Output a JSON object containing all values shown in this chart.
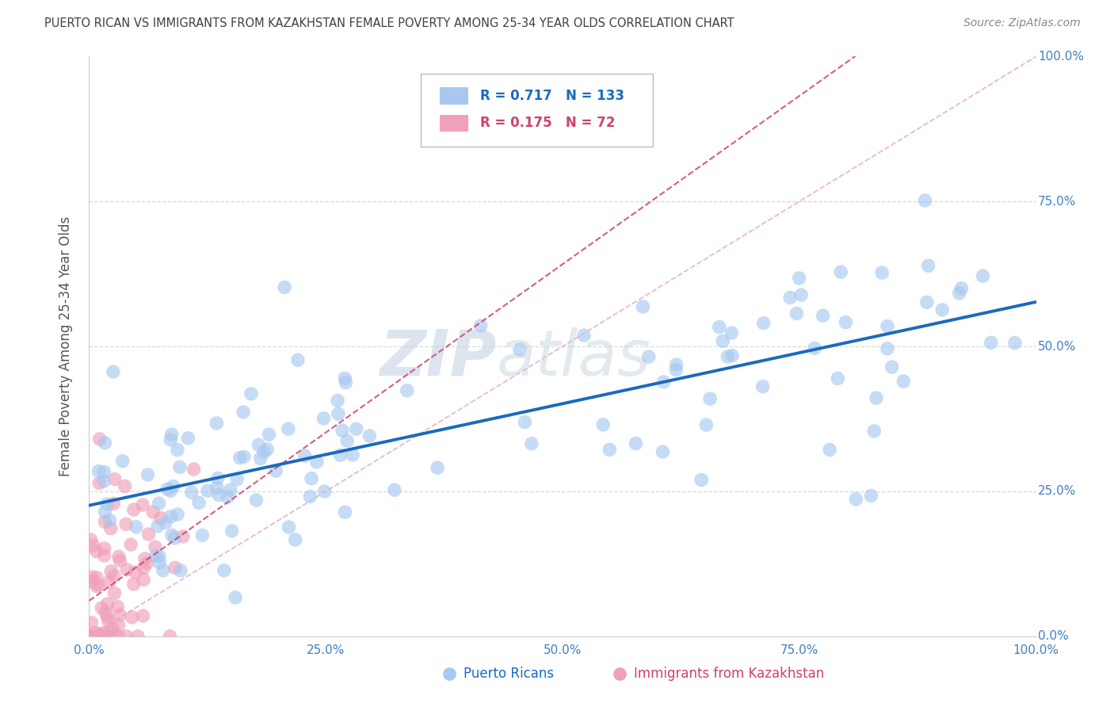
{
  "title": "PUERTO RICAN VS IMMIGRANTS FROM KAZAKHSTAN FEMALE POVERTY AMONG 25-34 YEAR OLDS CORRELATION CHART",
  "source": "Source: ZipAtlas.com",
  "ylabel": "Female Poverty Among 25-34 Year Olds",
  "watermark_zip": "ZIP",
  "watermark_atlas": "atlas",
  "blue_R": 0.717,
  "blue_N": 133,
  "pink_R": 0.175,
  "pink_N": 72,
  "blue_color": "#a8c8f0",
  "blue_line_color": "#1a6abf",
  "pink_color": "#f0a0b8",
  "pink_line_color": "#d04070",
  "ref_line_color": "#e8b0c0",
  "background_color": "#ffffff",
  "grid_color": "#d8d8d8",
  "title_color": "#404040",
  "axis_tick_color": "#4080c0",
  "ylabel_color": "#555555",
  "legend_blue_text_color": "#1a6abf",
  "legend_pink_text_color": "#d04070",
  "bottom_legend_blue_color": "#1a6abf",
  "bottom_legend_pink_color": "#d04070"
}
